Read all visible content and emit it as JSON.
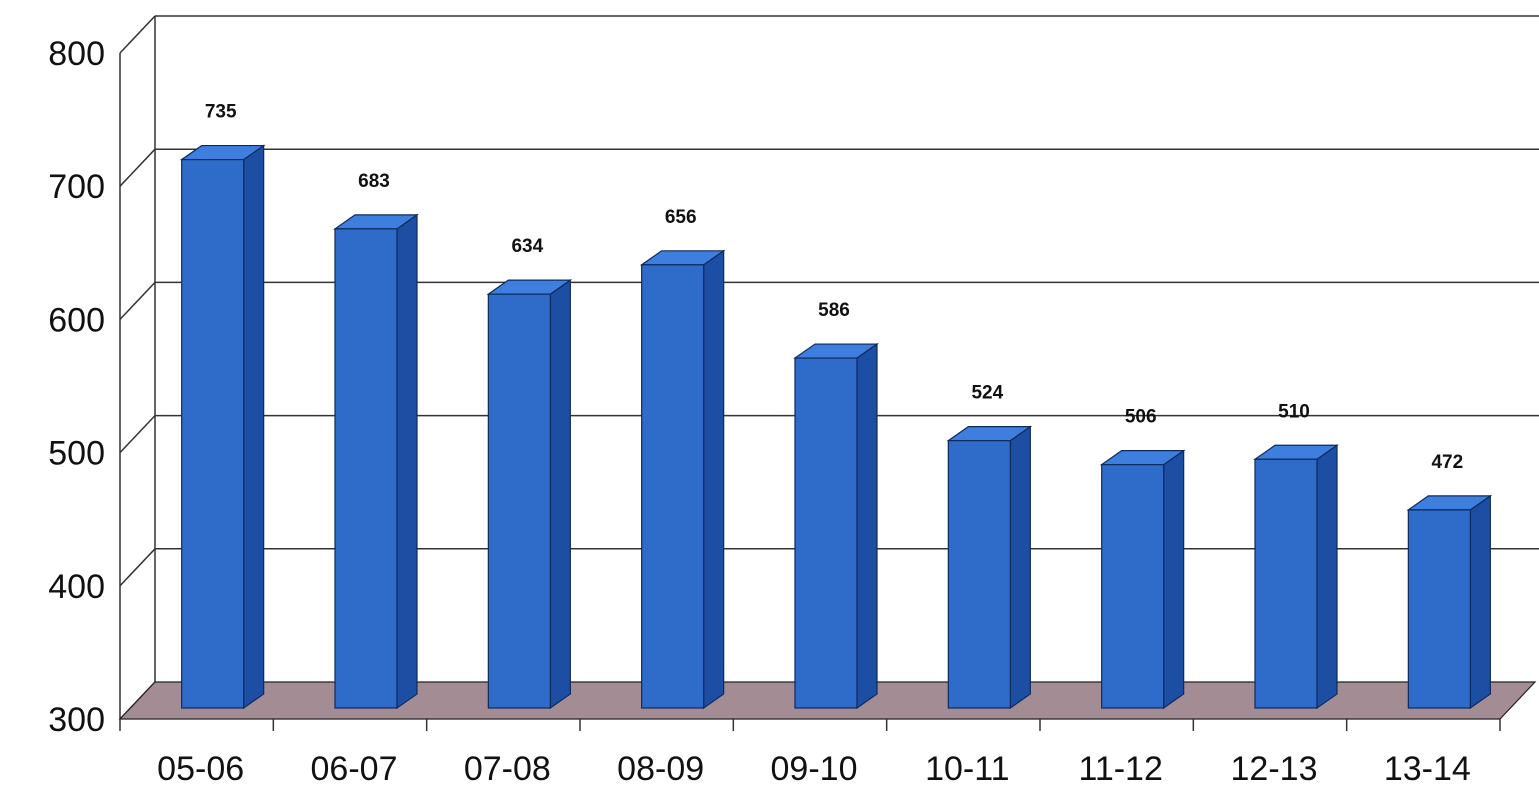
{
  "chart_data": {
    "type": "bar",
    "categories": [
      "05-06",
      "06-07",
      "07-08",
      "08-09",
      "09-10",
      "10-11",
      "11-12",
      "12-13",
      "13-14"
    ],
    "values": [
      735,
      683,
      634,
      656,
      586,
      524,
      506,
      510,
      472
    ],
    "data_labels": [
      "735",
      "683",
      "634",
      "656",
      "586",
      "524",
      "506",
      "510",
      "472"
    ],
    "yticks": [
      "300",
      "400",
      "500",
      "600",
      "700",
      "800"
    ],
    "ylim": [
      300,
      800
    ],
    "grid": true,
    "style": "3d-column",
    "colors": {
      "bar_front": "#2f6bc9",
      "bar_side": "#1c4fa3",
      "bar_top": "#3d7ede",
      "floor": "#a48c95",
      "gridline": "#333333"
    }
  }
}
